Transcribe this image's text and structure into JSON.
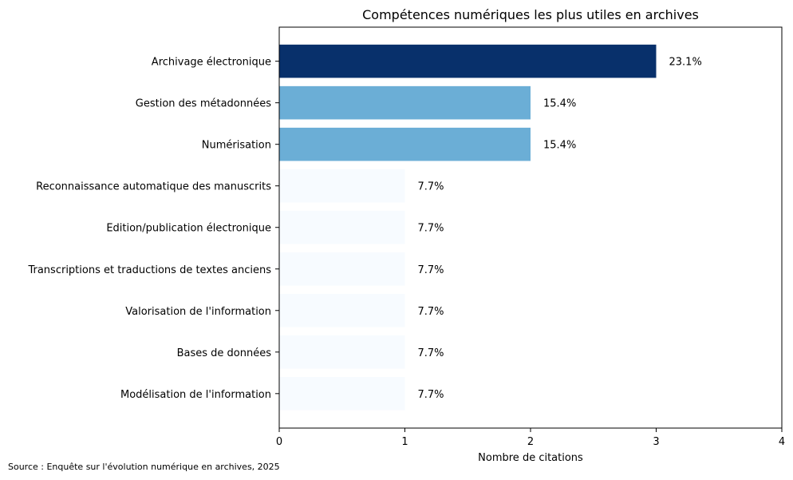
{
  "chart_data": {
    "type": "bar",
    "orientation": "horizontal",
    "title": "Compétences numériques les plus utiles en archives",
    "xlabel": "Nombre de citations",
    "ylabel": "",
    "xlim": [
      0,
      4
    ],
    "xticks": [
      "0",
      "1",
      "2",
      "3",
      "4"
    ],
    "grid": false,
    "categories": [
      "Archivage électronique",
      "Gestion des métadonnées",
      "Numérisation",
      "Reconnaissance automatique des manuscrits",
      "Edition/publication électronique",
      "Transcriptions et traductions de textes anciens",
      "Valorisation de l'information",
      "Bases de données",
      "Modélisation de l'information"
    ],
    "values": [
      3,
      2,
      2,
      1,
      1,
      1,
      1,
      1,
      1
    ],
    "data_labels": [
      "23.1%",
      "15.4%",
      "15.4%",
      "7.7%",
      "7.7%",
      "7.7%",
      "7.7%",
      "7.7%",
      "7.7%"
    ],
    "colors": [
      "#08306b",
      "#6baed6",
      "#6baed6",
      "#f7fbff",
      "#f7fbff",
      "#f7fbff",
      "#f7fbff",
      "#f7fbff",
      "#f7fbff"
    ]
  },
  "source": "Source : Enquête sur l'évolution numérique en archives, 2025"
}
